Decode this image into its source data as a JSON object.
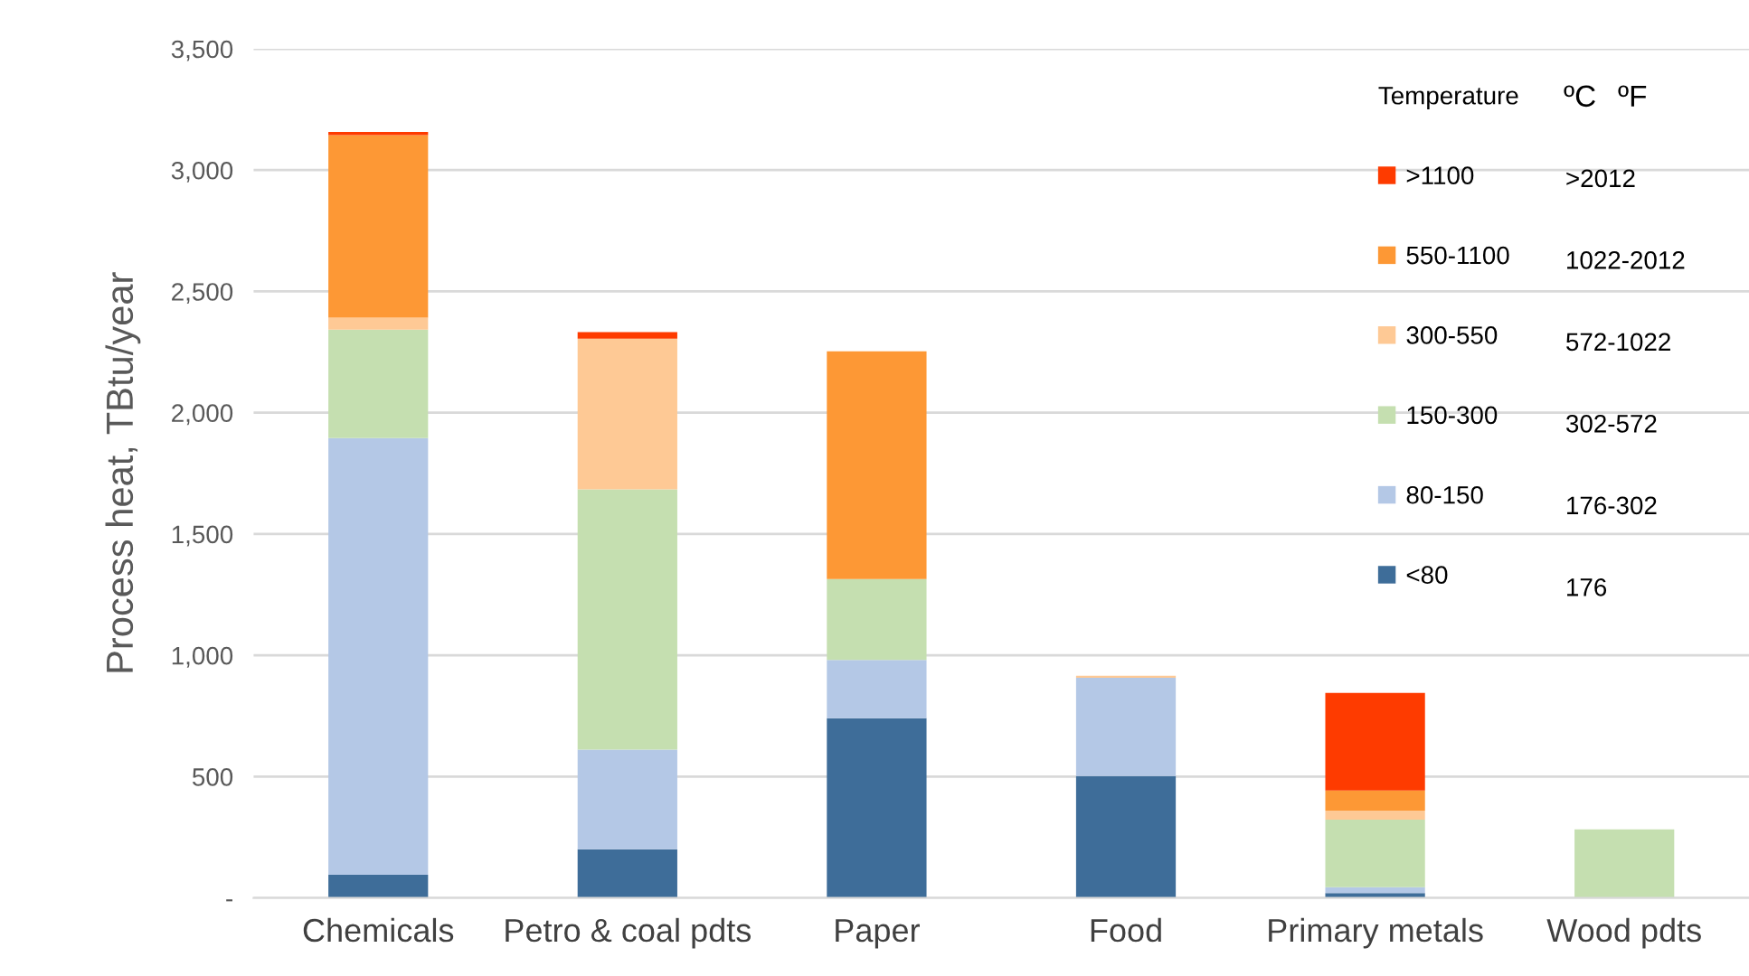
{
  "chart_data": {
    "type": "bar",
    "stacked": true,
    "ylabel": "Process heat, TBtu/year",
    "legend_title": "Temperature",
    "categories": [
      "Chemicals",
      "Petro & coal pdts",
      "Paper",
      "Food",
      "Primary metals",
      "Wood pdts"
    ],
    "series": [
      {
        "name": "<80",
        "color": "#3e6d99",
        "values": [
          95,
          201,
          741,
          502,
          20,
          0
        ]
      },
      {
        "name": "80-150",
        "color": "#b4c8e6",
        "values": [
          1800,
          410,
          240,
          405,
          24,
          0
        ]
      },
      {
        "name": "150-300",
        "color": "#c5dfb0",
        "values": [
          447,
          1073,
          333,
          0,
          279,
          283
        ]
      },
      {
        "name": "300-550",
        "color": "#fec995",
        "values": [
          50,
          621,
          0,
          9,
          37,
          0
        ]
      },
      {
        "name": "550-1100",
        "color": "#fd9835",
        "values": [
          752,
          0,
          939,
          0,
          83,
          0
        ]
      },
      {
        "name": ">1100",
        "color": "#fe3b00",
        "values": [
          13,
          27,
          0,
          0,
          402,
          0
        ]
      }
    ],
    "ylim": [
      0,
      3500
    ],
    "yticks": [
      {
        "value": 0,
        "label": "-"
      },
      {
        "value": 500,
        "label": "500"
      },
      {
        "value": 1000,
        "label": "1,000"
      },
      {
        "value": 1500,
        "label": "1,500"
      },
      {
        "value": 2000,
        "label": "2,000"
      },
      {
        "value": 2500,
        "label": "2,500"
      },
      {
        "value": 3000,
        "label": "3,000"
      },
      {
        "value": 3500,
        "label": "3,500"
      }
    ],
    "grid": "y",
    "legend": "top right",
    "annotations": [
      "ºC",
      "ºF",
      ">2012",
      "1022-2012",
      "572-1022",
      "302-572",
      "176-302",
      "176"
    ]
  }
}
